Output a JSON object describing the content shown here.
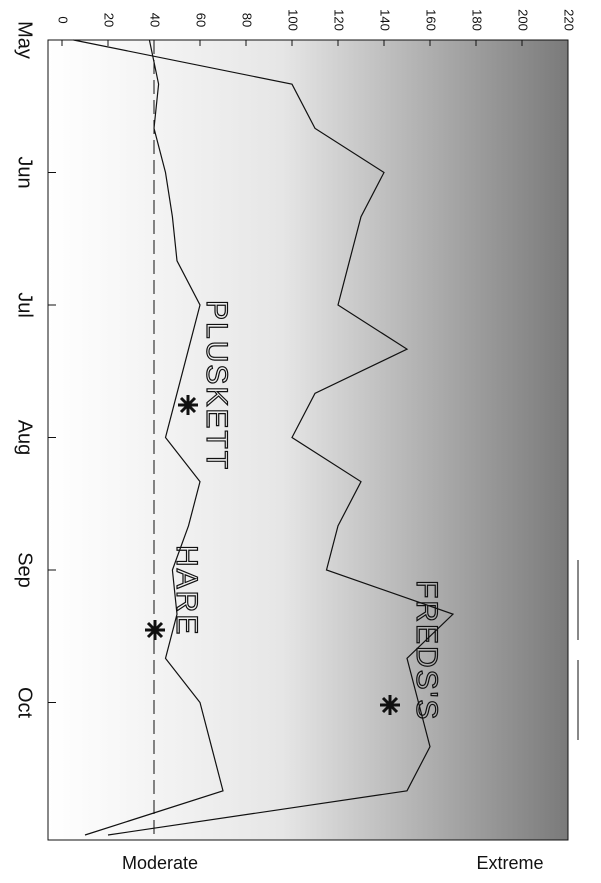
{
  "chart_data": {
    "type": "line",
    "categories": [
      "May",
      null,
      null,
      "Jun",
      null,
      null,
      "Jul",
      null,
      null,
      "Aug",
      null,
      null,
      "Sep",
      null,
      null,
      "Oct",
      null,
      null,
      null
    ],
    "series": [
      {
        "color": "#111111",
        "values": [
          5,
          100,
          110,
          140,
          130,
          125,
          120,
          150,
          110,
          100,
          130,
          120,
          115,
          170,
          150,
          155,
          160,
          150,
          20
        ]
      },
      {
        "color": "#111111",
        "values": [
          38,
          42,
          40,
          45,
          48,
          50,
          60,
          55,
          50,
          45,
          60,
          55,
          48,
          50,
          45,
          60,
          65,
          70,
          10
        ]
      }
    ],
    "reference": 40,
    "xlim": [
      0,
      220
    ],
    "xticks": [
      0,
      20,
      40,
      60,
      80,
      100,
      120,
      140,
      160,
      180,
      200,
      220
    ],
    "annotations": [
      "PLUSKETT",
      "HARE",
      "FREDS'S"
    ],
    "scale_labels": [
      "Moderate",
      "Extreme"
    ]
  }
}
